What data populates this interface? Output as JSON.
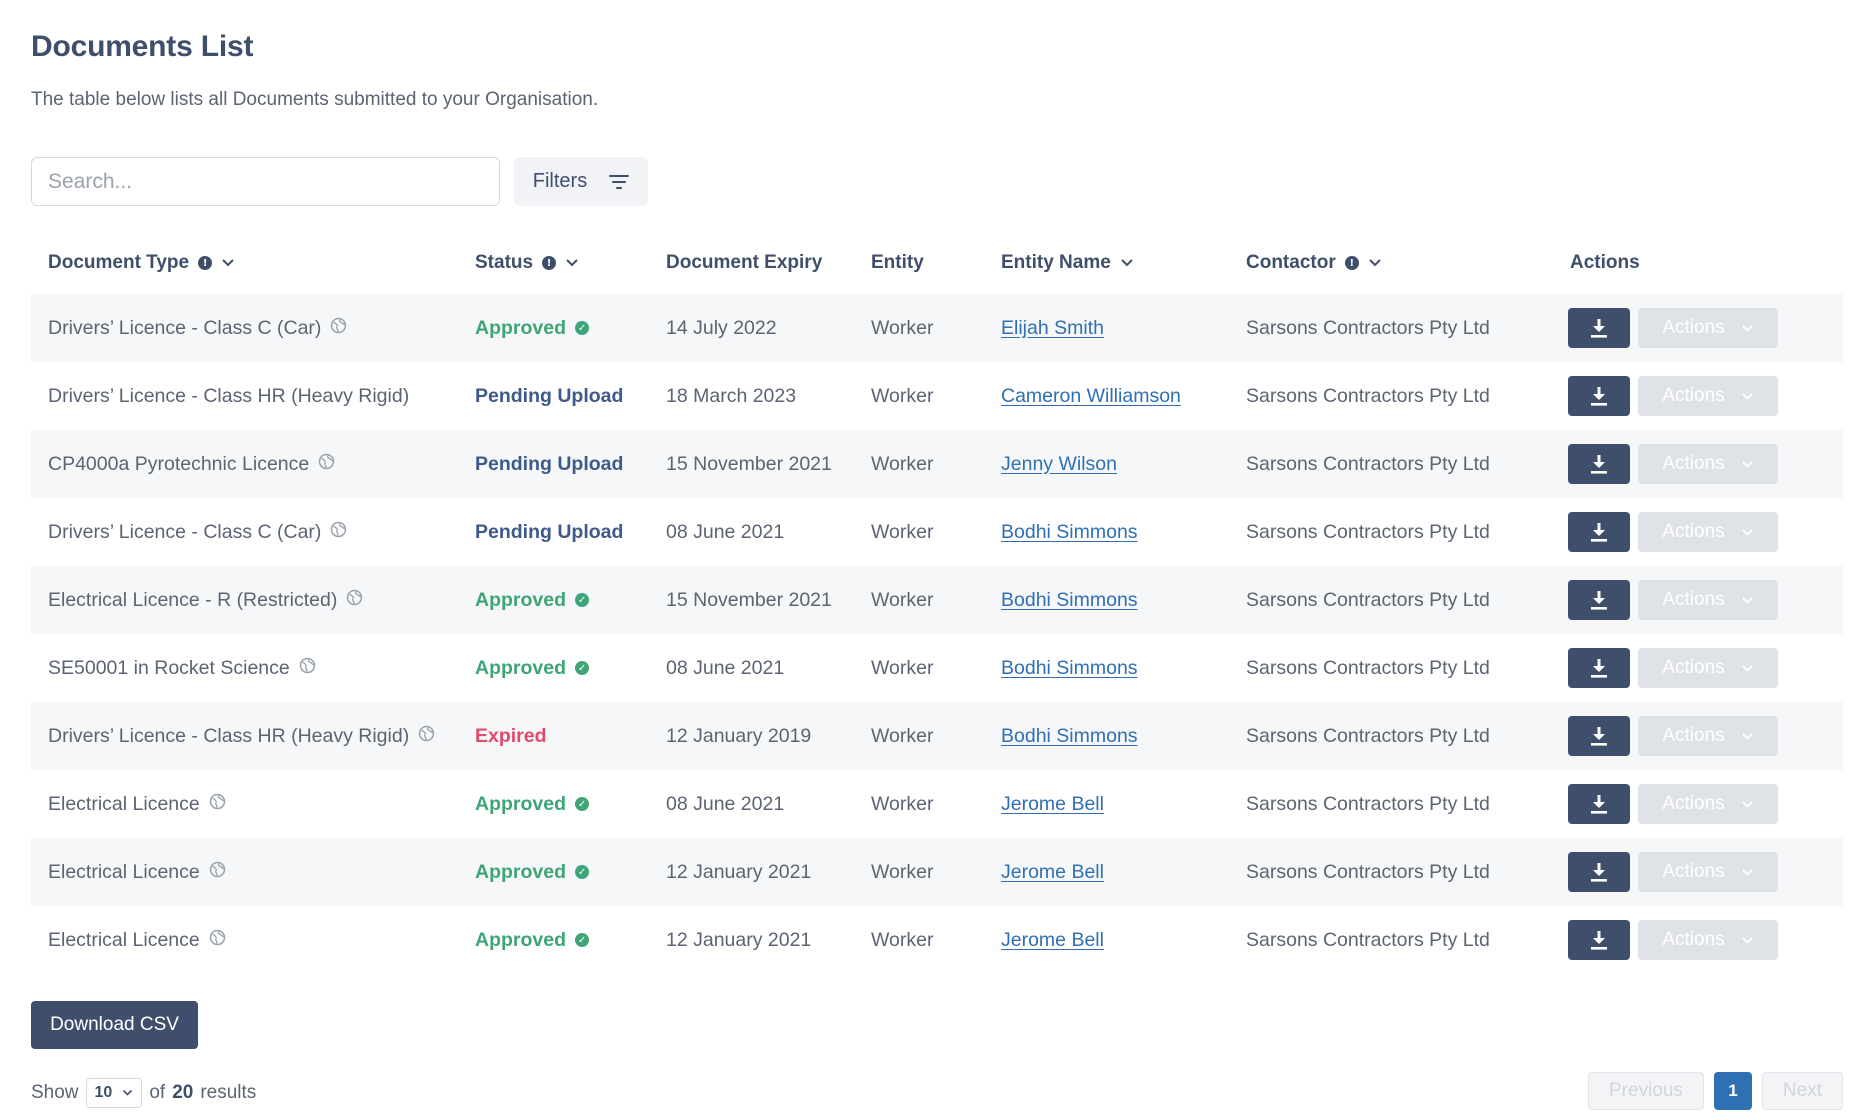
{
  "header": {
    "title": "Documents List",
    "subtitle": "The table below lists all Documents submitted to your Organisation."
  },
  "toolbar": {
    "search_placeholder": "Search...",
    "filters_label": "Filters"
  },
  "table": {
    "columns": [
      "Document Type",
      "Status",
      "Document Expiry",
      "Entity",
      "Entity Name",
      "Contactor",
      "Actions"
    ],
    "action_label": "Actions",
    "rows": [
      {
        "type": "Drivers’ Licence - Class C (Car)",
        "globe": true,
        "status": "Approved",
        "status_kind": "approved",
        "expiry": "14 July 2022",
        "entity": "Worker",
        "name": "Elijah Smith",
        "contractor": "Sarsons Contractors Pty Ltd"
      },
      {
        "type": "Drivers’ Licence - Class HR (Heavy Rigid)",
        "globe": false,
        "status": "Pending Upload",
        "status_kind": "pending",
        "expiry": "18 March 2023",
        "entity": "Worker",
        "name": "Cameron Williamson",
        "contractor": "Sarsons Contractors Pty Ltd"
      },
      {
        "type": "CP4000a Pyrotechnic Licence",
        "globe": true,
        "status": "Pending Upload",
        "status_kind": "pending",
        "expiry": "15 November 2021",
        "entity": "Worker",
        "name": "Jenny Wilson",
        "contractor": "Sarsons Contractors Pty Ltd"
      },
      {
        "type": "Drivers’ Licence - Class C (Car)",
        "globe": true,
        "status": "Pending Upload",
        "status_kind": "pending",
        "expiry": "08 June 2021",
        "entity": "Worker",
        "name": "Bodhi Simmons",
        "contractor": "Sarsons Contractors Pty Ltd"
      },
      {
        "type": "Electrical Licence - R (Restricted)",
        "globe": true,
        "status": "Approved",
        "status_kind": "approved",
        "expiry": "15 November 2021",
        "entity": "Worker",
        "name": "Bodhi Simmons",
        "contractor": "Sarsons Contractors Pty Ltd"
      },
      {
        "type": "SE50001 in Rocket Science",
        "globe": true,
        "status": "Approved",
        "status_kind": "approved",
        "expiry": "08 June 2021",
        "entity": "Worker",
        "name": "Bodhi Simmons",
        "contractor": "Sarsons Contractors Pty Ltd"
      },
      {
        "type": "Drivers’ Licence - Class HR (Heavy Rigid)",
        "globe": true,
        "status": "Expired",
        "status_kind": "expired",
        "expiry": "12 January 2019",
        "entity": "Worker",
        "name": "Bodhi Simmons",
        "contractor": "Sarsons Contractors Pty Ltd"
      },
      {
        "type": "Electrical Licence",
        "globe": true,
        "status": "Approved",
        "status_kind": "approved",
        "expiry": "08 June 2021",
        "entity": "Worker",
        "name": "Jerome Bell",
        "contractor": "Sarsons Contractors Pty Ltd"
      },
      {
        "type": "Electrical Licence",
        "globe": true,
        "status": "Approved",
        "status_kind": "approved",
        "expiry": "12 January 2021",
        "entity": "Worker",
        "name": "Jerome Bell",
        "contractor": "Sarsons Contractors Pty Ltd"
      },
      {
        "type": "Electrical Licence",
        "globe": true,
        "status": "Approved",
        "status_kind": "approved",
        "expiry": "12 January 2021",
        "entity": "Worker",
        "name": "Jerome Bell",
        "contractor": "Sarsons Contractors Pty Ltd"
      }
    ]
  },
  "footer": {
    "csv_label": "Download CSV",
    "show_label": "Show",
    "page_size": "10",
    "of_label": "of",
    "total": "20",
    "results_label": "results",
    "prev_label": "Previous",
    "current_page": "1",
    "next_label": "Next"
  },
  "colors": {
    "primary": "#3f4f6b",
    "approved": "#3fa576",
    "pending": "#3f5a88",
    "expired": "#e04b6b",
    "link": "#2f6fb3"
  }
}
